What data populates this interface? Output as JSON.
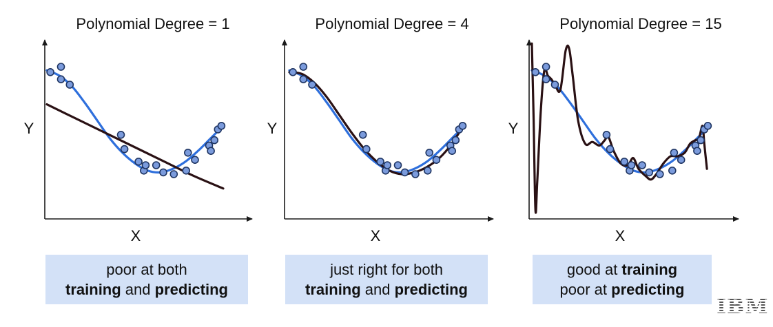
{
  "colors": {
    "blue_curve": "#2e6fdc",
    "fit_curve": "#2a1114",
    "point_fill": "#7b9bdc",
    "point_stroke": "#1f3562",
    "axis": "#1a1a1a",
    "caption_bg": "#d3e1f7"
  },
  "logo": {
    "text": "IBM"
  },
  "chart_data": [
    {
      "type": "scatter",
      "title": "Polynomial Degree = 1",
      "xlabel": "X",
      "ylabel": "Y",
      "xlim": [
        0,
        1
      ],
      "ylim": [
        0,
        1
      ],
      "grid": false,
      "points": [
        [
          0.02,
          0.82
        ],
        [
          0.08,
          0.85
        ],
        [
          0.08,
          0.78
        ],
        [
          0.13,
          0.75
        ],
        [
          0.42,
          0.47
        ],
        [
          0.44,
          0.39
        ],
        [
          0.52,
          0.32
        ],
        [
          0.55,
          0.27
        ],
        [
          0.56,
          0.3
        ],
        [
          0.62,
          0.3
        ],
        [
          0.66,
          0.26
        ],
        [
          0.72,
          0.25
        ],
        [
          0.79,
          0.27
        ],
        [
          0.8,
          0.37
        ],
        [
          0.84,
          0.33
        ],
        [
          0.92,
          0.41
        ],
        [
          0.93,
          0.38
        ],
        [
          0.95,
          0.44
        ],
        [
          0.97,
          0.5
        ],
        [
          0.99,
          0.52
        ]
      ],
      "true_curve": [
        0.83,
        0.8,
        0.74,
        0.65,
        0.55,
        0.45,
        0.37,
        0.31,
        0.27,
        0.26,
        0.28,
        0.32,
        0.38,
        0.45,
        0.52
      ],
      "fit_curve": [
        0.64,
        0.56,
        0.48,
        0.4,
        0.32,
        0.24,
        0.17
      ],
      "caption": {
        "line1": [
          {
            "t": "poor at both",
            "b": false
          }
        ],
        "line2": [
          {
            "t": "training",
            "b": true
          },
          {
            "t": " and ",
            "b": false
          },
          {
            "t": "predicting",
            "b": true
          }
        ]
      }
    },
    {
      "type": "scatter",
      "title": "Polynomial Degree = 4",
      "xlabel": "X",
      "ylabel": "Y",
      "xlim": [
        0,
        1
      ],
      "ylim": [
        0,
        1
      ],
      "grid": false,
      "points": [
        [
          0.02,
          0.82
        ],
        [
          0.08,
          0.85
        ],
        [
          0.08,
          0.78
        ],
        [
          0.13,
          0.75
        ],
        [
          0.42,
          0.47
        ],
        [
          0.44,
          0.39
        ],
        [
          0.52,
          0.32
        ],
        [
          0.55,
          0.27
        ],
        [
          0.56,
          0.3
        ],
        [
          0.62,
          0.3
        ],
        [
          0.66,
          0.26
        ],
        [
          0.72,
          0.25
        ],
        [
          0.79,
          0.27
        ],
        [
          0.8,
          0.37
        ],
        [
          0.84,
          0.33
        ],
        [
          0.92,
          0.41
        ],
        [
          0.93,
          0.38
        ],
        [
          0.95,
          0.44
        ],
        [
          0.97,
          0.5
        ],
        [
          0.99,
          0.52
        ]
      ],
      "true_curve": [
        0.83,
        0.8,
        0.74,
        0.65,
        0.55,
        0.45,
        0.37,
        0.31,
        0.27,
        0.26,
        0.28,
        0.32,
        0.38,
        0.45,
        0.52
      ],
      "fit_curve": [
        0.82,
        0.81,
        0.76,
        0.68,
        0.58,
        0.48,
        0.39,
        0.32,
        0.27,
        0.25,
        0.26,
        0.29,
        0.34,
        0.42,
        0.53
      ],
      "caption": {
        "line1": [
          {
            "t": "just right for both",
            "b": false
          }
        ],
        "line2": [
          {
            "t": "training",
            "b": true
          },
          {
            "t": " and ",
            "b": false
          },
          {
            "t": "predicting",
            "b": true
          }
        ]
      }
    },
    {
      "type": "scatter",
      "title": "Polynomial Degree = 15",
      "xlabel": "X",
      "ylabel": "Y",
      "xlim": [
        0,
        1
      ],
      "ylim": [
        0,
        1
      ],
      "grid": false,
      "points": [
        [
          0.02,
          0.82
        ],
        [
          0.08,
          0.85
        ],
        [
          0.08,
          0.78
        ],
        [
          0.13,
          0.75
        ],
        [
          0.42,
          0.47
        ],
        [
          0.44,
          0.39
        ],
        [
          0.52,
          0.32
        ],
        [
          0.55,
          0.27
        ],
        [
          0.56,
          0.3
        ],
        [
          0.62,
          0.3
        ],
        [
          0.66,
          0.26
        ],
        [
          0.72,
          0.25
        ],
        [
          0.79,
          0.27
        ],
        [
          0.8,
          0.37
        ],
        [
          0.84,
          0.33
        ],
        [
          0.92,
          0.41
        ],
        [
          0.93,
          0.38
        ],
        [
          0.95,
          0.44
        ],
        [
          0.97,
          0.5
        ],
        [
          0.99,
          0.52
        ]
      ],
      "true_curve": [
        0.83,
        0.8,
        0.74,
        0.65,
        0.55,
        0.45,
        0.37,
        0.31,
        0.27,
        0.26,
        0.28,
        0.32,
        0.38,
        0.45,
        0.52
      ],
      "fit_points": [
        [
          0.0,
          0.98
        ],
        [
          0.01,
          0.55
        ],
        [
          0.02,
          0.05
        ],
        [
          0.03,
          0.2
        ],
        [
          0.05,
          0.6
        ],
        [
          0.07,
          0.83
        ],
        [
          0.09,
          0.8
        ],
        [
          0.11,
          0.78
        ],
        [
          0.13,
          0.75
        ],
        [
          0.16,
          0.72
        ],
        [
          0.19,
          0.94
        ],
        [
          0.21,
          0.95
        ],
        [
          0.23,
          0.8
        ],
        [
          0.26,
          0.55
        ],
        [
          0.3,
          0.42
        ],
        [
          0.34,
          0.43
        ],
        [
          0.38,
          0.41
        ],
        [
          0.41,
          0.44
        ],
        [
          0.43,
          0.46
        ],
        [
          0.46,
          0.38
        ],
        [
          0.5,
          0.31
        ],
        [
          0.54,
          0.3
        ],
        [
          0.57,
          0.34
        ],
        [
          0.6,
          0.28
        ],
        [
          0.64,
          0.24
        ],
        [
          0.67,
          0.22
        ],
        [
          0.7,
          0.25
        ],
        [
          0.74,
          0.31
        ],
        [
          0.78,
          0.35
        ],
        [
          0.82,
          0.35
        ],
        [
          0.86,
          0.37
        ],
        [
          0.89,
          0.42
        ],
        [
          0.92,
          0.44
        ],
        [
          0.94,
          0.45
        ],
        [
          0.96,
          0.52
        ],
        [
          0.97,
          0.42
        ],
        [
          0.985,
          0.28
        ]
      ],
      "caption": {
        "line1": [
          {
            "t": "good at ",
            "b": false
          },
          {
            "t": "training",
            "b": true
          }
        ],
        "line2": [
          {
            "t": "poor at ",
            "b": false
          },
          {
            "t": "predicting",
            "b": true
          }
        ]
      }
    }
  ]
}
